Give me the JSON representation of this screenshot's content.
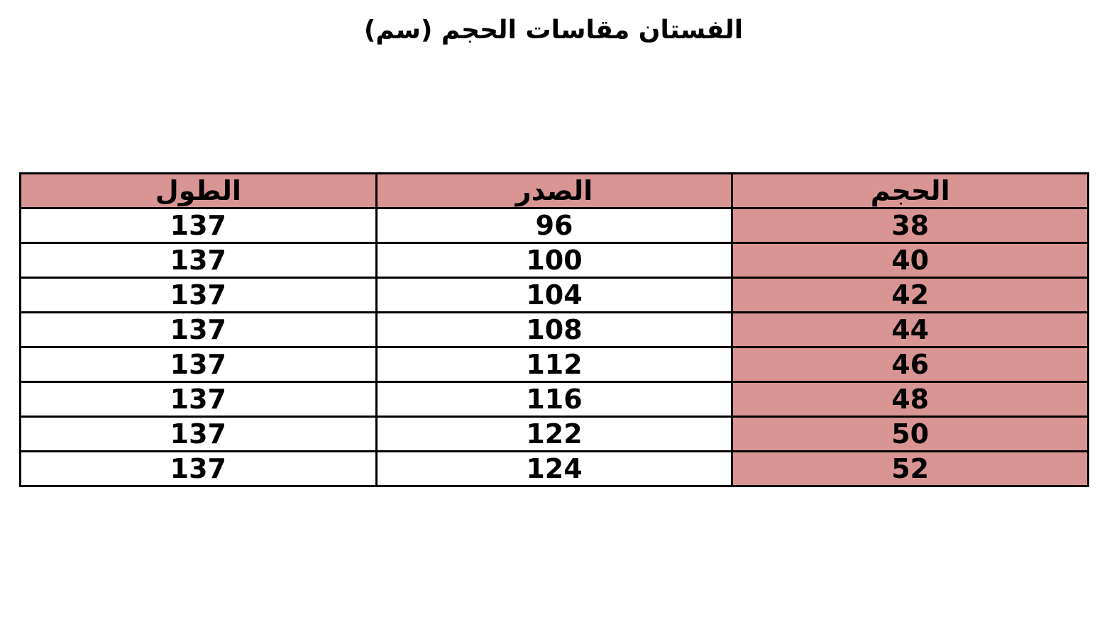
{
  "title": "الفستان مقاسات الحجم (سم)",
  "colors": {
    "highlight": "#d99594",
    "border": "#000000"
  },
  "table": {
    "headers": [
      "الحجم",
      "الصدر",
      "الطول"
    ],
    "rows": [
      [
        "38",
        "96",
        "137"
      ],
      [
        "40",
        "100",
        "137"
      ],
      [
        "42",
        "104",
        "137"
      ],
      [
        "44",
        "108",
        "137"
      ],
      [
        "46",
        "112",
        "137"
      ],
      [
        "48",
        "116",
        "137"
      ],
      [
        "50",
        "122",
        "137"
      ],
      [
        "52",
        "124",
        "137"
      ]
    ]
  }
}
